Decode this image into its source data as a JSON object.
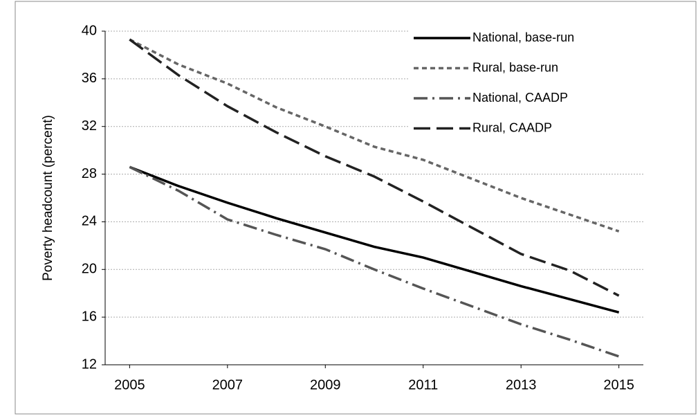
{
  "chart_data": {
    "type": "line",
    "y_label": "Poverty headcount (percent)",
    "x": [
      2005,
      2006,
      2007,
      2008,
      2009,
      2010,
      2011,
      2012,
      2013,
      2014,
      2015
    ],
    "xlim": [
      2004.5,
      2015.5
    ],
    "xticks": [
      2005,
      2007,
      2009,
      2011,
      2013,
      2015
    ],
    "ylim": [
      12,
      40
    ],
    "yticks": [
      12,
      16,
      20,
      24,
      28,
      32,
      36,
      40
    ],
    "grid": true,
    "legend": "upper right",
    "series": [
      {
        "name": "National, base-run",
        "color": "#000000",
        "dash": "solid",
        "values": [
          28.6,
          27.0,
          25.6,
          24.3,
          23.1,
          21.9,
          21.0,
          19.8,
          18.6,
          17.5,
          16.4
        ]
      },
      {
        "name": "Rural, base-run",
        "color": "#666666",
        "dash": "dashed",
        "values": [
          39.3,
          37.2,
          35.6,
          33.6,
          32.0,
          30.3,
          29.2,
          27.6,
          26.0,
          24.6,
          23.2
        ]
      },
      {
        "name": "National, CAADP",
        "color": "#555555",
        "dash": "dashdot",
        "values": [
          28.6,
          26.6,
          24.2,
          22.9,
          21.7,
          20.0,
          18.4,
          16.9,
          15.4,
          14.1,
          12.7
        ]
      },
      {
        "name": "Rural, CAADP",
        "color": "#222222",
        "dash": "longdash",
        "values": [
          39.3,
          36.3,
          33.7,
          31.5,
          29.5,
          27.8,
          25.7,
          23.5,
          21.3,
          19.9,
          17.8
        ]
      }
    ]
  }
}
